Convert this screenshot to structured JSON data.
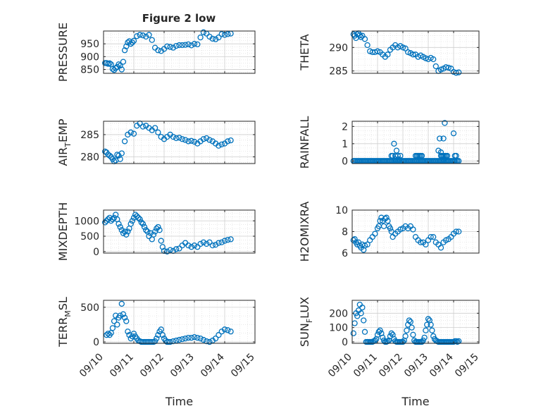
{
  "figure": {
    "title": "Figure 2 low",
    "xlabel": "Time",
    "marker_color": "#0072bd"
  },
  "chart_data": [
    {
      "type": "scatter",
      "ylabel_main": "PRESSURE",
      "ylabel_sub": "",
      "ylabel_tail": "",
      "ylim": [
        835,
        1000
      ],
      "yticks": [
        850,
        900,
        950
      ],
      "xlim": [
        0,
        5
      ],
      "grid": true,
      "x": [
        0.05,
        0.1,
        0.15,
        0.2,
        0.25,
        0.3,
        0.35,
        0.4,
        0.45,
        0.5,
        0.55,
        0.6,
        0.65,
        0.7,
        0.75,
        0.8,
        0.85,
        0.9,
        0.95,
        1.0,
        1.1,
        1.2,
        1.3,
        1.4,
        1.5,
        1.6,
        1.7,
        1.8,
        1.9,
        2.0,
        2.1,
        2.2,
        2.3,
        2.4,
        2.5,
        2.6,
        2.7,
        2.8,
        2.9,
        3.0,
        3.1,
        3.2,
        3.3,
        3.4,
        3.5,
        3.6,
        3.7,
        3.8,
        3.9,
        4.0,
        4.1,
        4.2
      ],
      "y": [
        875,
        875,
        872,
        874,
        870,
        852,
        848,
        855,
        860,
        870,
        865,
        850,
        880,
        925,
        940,
        955,
        960,
        950,
        955,
        962,
        980,
        985,
        983,
        978,
        985,
        965,
        935,
        925,
        922,
        930,
        940,
        938,
        935,
        942,
        945,
        945,
        946,
        948,
        944,
        950,
        948,
        975,
        995,
        990,
        978,
        970,
        968,
        975,
        988,
        985,
        988,
        990
      ]
    },
    {
      "type": "scatter",
      "ylabel_main": "THETA",
      "ylabel_sub": "",
      "ylabel_tail": "",
      "ylim": [
        284.5,
        293.5
      ],
      "yticks": [
        285,
        290
      ],
      "xlim": [
        0,
        5
      ],
      "grid": true,
      "x": [
        0.05,
        0.1,
        0.15,
        0.2,
        0.25,
        0.3,
        0.35,
        0.4,
        0.5,
        0.6,
        0.7,
        0.8,
        0.9,
        1.0,
        1.1,
        1.2,
        1.3,
        1.4,
        1.5,
        1.6,
        1.7,
        1.8,
        1.9,
        2.0,
        2.1,
        2.2,
        2.3,
        2.4,
        2.5,
        2.6,
        2.7,
        2.8,
        2.9,
        3.0,
        3.1,
        3.2,
        3.3,
        3.4,
        3.5,
        3.6,
        3.7,
        3.8,
        3.9,
        4.0,
        4.1,
        4.2
      ],
      "y": [
        292.8,
        292.5,
        292.0,
        292.8,
        293.0,
        292.6,
        292.2,
        292.5,
        291.8,
        290.5,
        289.2,
        289.0,
        289.0,
        289.2,
        289.0,
        288.5,
        288.0,
        288.5,
        289.5,
        290.0,
        290.5,
        290.0,
        290.3,
        290.0,
        289.8,
        289.0,
        288.8,
        288.5,
        288.5,
        288.0,
        288.3,
        288.0,
        287.7,
        287.5,
        287.8,
        287.5,
        286.0,
        285.0,
        285.3,
        285.5,
        285.8,
        285.7,
        285.5,
        284.8,
        284.6,
        284.7
      ]
    },
    {
      "type": "scatter",
      "ylabel_main": "AIR",
      "ylabel_sub": "T",
      "ylabel_tail": "EMP",
      "ylim": [
        278.5,
        288
      ],
      "yticks": [
        280,
        285
      ],
      "xlim": [
        0,
        5
      ],
      "grid": true,
      "x": [
        0.05,
        0.1,
        0.15,
        0.2,
        0.25,
        0.3,
        0.35,
        0.4,
        0.45,
        0.5,
        0.55,
        0.6,
        0.7,
        0.8,
        0.9,
        1.0,
        1.1,
        1.2,
        1.3,
        1.4,
        1.5,
        1.6,
        1.7,
        1.8,
        1.9,
        2.0,
        2.1,
        2.2,
        2.3,
        2.4,
        2.5,
        2.6,
        2.7,
        2.8,
        2.9,
        3.0,
        3.1,
        3.2,
        3.3,
        3.4,
        3.5,
        3.6,
        3.7,
        3.8,
        3.9,
        4.0,
        4.1,
        4.2
      ],
      "y": [
        281.2,
        281.0,
        280.5,
        280.3,
        280.0,
        279.5,
        279.0,
        279.2,
        280.5,
        280.3,
        279.5,
        280.8,
        283.5,
        285.0,
        285.5,
        285.2,
        287.0,
        287.5,
        286.8,
        287.0,
        286.5,
        286.0,
        286.5,
        285.5,
        284.5,
        284.0,
        284.5,
        285.0,
        284.5,
        284.2,
        284.3,
        284.0,
        283.8,
        283.5,
        283.6,
        283.4,
        283.0,
        283.5,
        284.0,
        284.2,
        283.8,
        283.5,
        283.0,
        282.5,
        282.8,
        283.0,
        283.5,
        283.7
      ]
    },
    {
      "type": "scatter",
      "ylabel_main": "RAINFALL",
      "ylabel_sub": "",
      "ylabel_tail": "",
      "ylim": [
        -0.15,
        2.3
      ],
      "yticks": [
        0,
        1,
        2
      ],
      "xlim": [
        0,
        5
      ],
      "grid": true,
      "x": [
        0.05,
        0.1,
        0.15,
        0.2,
        0.25,
        0.3,
        0.35,
        0.4,
        0.45,
        0.5,
        0.55,
        0.6,
        0.65,
        0.7,
        0.75,
        0.8,
        0.85,
        0.9,
        0.95,
        1.0,
        1.05,
        1.1,
        1.15,
        1.2,
        1.25,
        1.3,
        1.35,
        1.4,
        1.45,
        1.5,
        1.55,
        1.6,
        1.65,
        1.7,
        1.75,
        1.8,
        1.85,
        1.9,
        1.95,
        2.0,
        2.05,
        2.1,
        2.15,
        2.2,
        2.25,
        2.3,
        2.35,
        2.4,
        2.45,
        2.5,
        2.55,
        2.6,
        2.65,
        2.7,
        2.75,
        2.8,
        2.85,
        2.9,
        2.95,
        3.0,
        3.05,
        3.1,
        3.15,
        3.2,
        3.25,
        3.3,
        3.35,
        3.4,
        3.45,
        3.5,
        3.55,
        3.6,
        3.65,
        3.7,
        3.75,
        3.8,
        3.85,
        3.9,
        3.95,
        4.0,
        4.05,
        4.1,
        4.15,
        4.2,
        1.55,
        1.6,
        1.65,
        1.7,
        1.75,
        1.8,
        1.85,
        1.9,
        2.5,
        2.55,
        2.6,
        2.65,
        2.7,
        2.75,
        3.5,
        3.55,
        3.6,
        3.65,
        3.7,
        3.75,
        3.6,
        3.65,
        4.0,
        4.05,
        4.1,
        1.7,
        3.4,
        3.45,
        3.5,
        3.55,
        3.6
      ],
      "y": [
        0,
        0,
        0,
        0,
        0,
        0,
        0,
        0,
        0,
        0,
        0,
        0,
        0,
        0,
        0,
        0,
        0,
        0,
        0,
        0,
        0,
        0,
        0,
        0,
        0,
        0,
        0,
        0,
        0,
        0,
        0,
        0,
        0,
        0,
        0,
        0,
        0,
        0,
        0,
        0,
        0,
        0,
        0,
        0,
        0,
        0,
        0,
        0,
        0,
        0,
        0,
        0,
        0,
        0,
        0,
        0,
        0,
        0,
        0,
        0,
        0,
        0,
        0,
        0,
        0,
        0,
        0,
        0,
        0,
        0,
        0,
        0,
        0,
        0,
        0,
        0,
        0,
        0,
        0,
        0,
        0,
        0,
        0,
        0,
        0.3,
        0.3,
        1.0,
        0.3,
        0.6,
        0.3,
        0.1,
        0.3,
        0.3,
        0.3,
        0.3,
        0.3,
        0.3,
        0.3,
        0.3,
        0.3,
        0.3,
        0.3,
        0.3,
        0.3,
        1.3,
        2.2,
        1.6,
        0.3,
        0.3,
        0.1,
        0.6,
        1.3,
        0.5,
        0.3,
        0.1
      ]
    },
    {
      "type": "scatter",
      "ylabel_main": "MIXDEPTH",
      "ylabel_sub": "",
      "ylabel_tail": "",
      "ylim": [
        -50,
        1350
      ],
      "yticks": [
        0,
        500,
        1000
      ],
      "xlim": [
        0,
        5
      ],
      "grid": true,
      "x": [
        0.05,
        0.1,
        0.15,
        0.2,
        0.25,
        0.3,
        0.35,
        0.4,
        0.45,
        0.5,
        0.55,
        0.6,
        0.65,
        0.7,
        0.75,
        0.8,
        0.85,
        0.9,
        0.95,
        1.0,
        1.05,
        1.1,
        1.15,
        1.2,
        1.25,
        1.3,
        1.35,
        1.4,
        1.45,
        1.5,
        1.55,
        1.6,
        1.65,
        1.7,
        1.75,
        1.8,
        1.85,
        1.9,
        1.95,
        2.0,
        2.1,
        2.2,
        2.3,
        2.4,
        2.5,
        2.6,
        2.7,
        2.8,
        2.9,
        3.0,
        3.1,
        3.2,
        3.3,
        3.4,
        3.5,
        3.6,
        3.7,
        3.8,
        3.9,
        4.0,
        4.1,
        4.2
      ],
      "y": [
        950,
        1000,
        1050,
        1100,
        1000,
        1050,
        1100,
        1200,
        1050,
        900,
        800,
        700,
        600,
        650,
        550,
        650,
        750,
        900,
        1000,
        1100,
        1200,
        1150,
        1100,
        1050,
        950,
        900,
        800,
        700,
        650,
        500,
        600,
        400,
        550,
        650,
        750,
        800,
        700,
        350,
        150,
        20,
        0,
        50,
        20,
        80,
        100,
        200,
        280,
        200,
        150,
        200,
        150,
        250,
        300,
        250,
        300,
        200,
        220,
        280,
        300,
        350,
        380,
        400
      ]
    },
    {
      "type": "scatter",
      "ylabel_main": "H2OMIXRA",
      "ylabel_sub": "",
      "ylabel_tail": "",
      "ylim": [
        6,
        10
      ],
      "yticks": [
        6,
        8,
        10
      ],
      "xlim": [
        0,
        5
      ],
      "grid": true,
      "x": [
        0.05,
        0.1,
        0.15,
        0.2,
        0.25,
        0.3,
        0.35,
        0.4,
        0.45,
        0.5,
        0.6,
        0.7,
        0.8,
        0.9,
        1.0,
        1.05,
        1.1,
        1.15,
        1.2,
        1.25,
        1.3,
        1.35,
        1.4,
        1.45,
        1.5,
        1.55,
        1.6,
        1.7,
        1.8,
        1.9,
        2.0,
        2.1,
        2.2,
        2.3,
        2.4,
        2.5,
        2.6,
        2.7,
        2.8,
        2.9,
        3.0,
        3.1,
        3.2,
        3.3,
        3.4,
        3.5,
        3.6,
        3.7,
        3.8,
        3.9,
        4.0,
        4.1,
        4.2
      ],
      "y": [
        7.2,
        7.3,
        7.0,
        6.8,
        7.0,
        6.7,
        6.5,
        6.8,
        6.3,
        6.7,
        6.8,
        7.2,
        7.5,
        7.8,
        8.3,
        8.5,
        9.0,
        9.3,
        9.0,
        8.5,
        9.2,
        9.3,
        9.0,
        8.5,
        8.3,
        8.0,
        7.5,
        7.8,
        8.0,
        8.2,
        8.3,
        8.5,
        8.3,
        8.5,
        8.2,
        7.5,
        7.2,
        7.0,
        7.0,
        6.8,
        7.2,
        7.5,
        7.5,
        7.0,
        6.8,
        6.5,
        7.0,
        7.2,
        7.3,
        7.5,
        7.8,
        8.0,
        8.0
      ]
    },
    {
      "type": "scatter",
      "ylabel_main": "TERR",
      "ylabel_sub": "M",
      "ylabel_tail": "SL",
      "ylim": [
        -20,
        600
      ],
      "yticks": [
        0,
        500
      ],
      "xlim": [
        0,
        5
      ],
      "grid": true,
      "x": [
        0.1,
        0.15,
        0.2,
        0.25,
        0.3,
        0.35,
        0.4,
        0.45,
        0.5,
        0.55,
        0.6,
        0.65,
        0.7,
        0.75,
        0.8,
        0.85,
        0.9,
        0.95,
        1.0,
        1.05,
        1.1,
        1.15,
        1.2,
        1.25,
        1.3,
        1.35,
        1.4,
        1.45,
        1.5,
        1.55,
        1.6,
        1.65,
        1.7,
        1.75,
        1.8,
        1.85,
        1.9,
        1.95,
        2.0,
        2.05,
        2.1,
        2.15,
        2.2,
        2.3,
        2.4,
        2.5,
        2.6,
        2.7,
        2.8,
        2.9,
        3.0,
        3.1,
        3.2,
        3.3,
        3.4,
        3.5,
        3.6,
        3.7,
        3.8,
        3.9,
        4.0,
        4.1,
        4.2
      ],
      "y": [
        100,
        120,
        100,
        130,
        200,
        300,
        380,
        250,
        350,
        380,
        550,
        400,
        350,
        300,
        150,
        100,
        50,
        80,
        120,
        80,
        50,
        20,
        10,
        0,
        0,
        0,
        0,
        0,
        0,
        0,
        0,
        0,
        10,
        50,
        100,
        150,
        180,
        100,
        50,
        20,
        0,
        0,
        0,
        10,
        20,
        30,
        40,
        50,
        60,
        60,
        70,
        60,
        50,
        30,
        10,
        0,
        20,
        50,
        100,
        150,
        180,
        170,
        150
      ]
    },
    {
      "type": "scatter",
      "ylabel_main": "SUN",
      "ylabel_sub": "F",
      "ylabel_tail": "LUX",
      "ylim": [
        -10,
        290
      ],
      "yticks": [
        0,
        100,
        200
      ],
      "xlim": [
        0,
        5
      ],
      "grid": true,
      "x": [
        0.05,
        0.1,
        0.15,
        0.2,
        0.25,
        0.3,
        0.35,
        0.4,
        0.45,
        0.5,
        0.55,
        0.6,
        0.65,
        0.7,
        0.75,
        0.8,
        0.85,
        0.9,
        0.95,
        1.0,
        1.05,
        1.1,
        1.15,
        1.2,
        1.25,
        1.3,
        1.35,
        1.4,
        1.45,
        1.5,
        1.55,
        1.6,
        1.65,
        1.7,
        1.75,
        1.8,
        1.85,
        1.9,
        1.95,
        2.0,
        2.05,
        2.1,
        2.15,
        2.2,
        2.25,
        2.3,
        2.35,
        2.4,
        2.45,
        2.5,
        2.55,
        2.6,
        2.65,
        2.7,
        2.75,
        2.8,
        2.85,
        2.9,
        2.95,
        3.0,
        3.05,
        3.1,
        3.15,
        3.2,
        3.25,
        3.3,
        3.35,
        3.4,
        3.45,
        3.5,
        3.55,
        3.6,
        3.65,
        3.7,
        3.75,
        3.8,
        3.85,
        3.9,
        3.95,
        4.0,
        4.05,
        4.1,
        4.15,
        4.2
      ],
      "y": [
        60,
        130,
        200,
        180,
        220,
        260,
        200,
        240,
        150,
        70,
        0,
        0,
        0,
        0,
        0,
        0,
        5,
        10,
        20,
        50,
        70,
        80,
        60,
        30,
        10,
        0,
        0,
        5,
        10,
        40,
        60,
        50,
        20,
        5,
        0,
        0,
        0,
        0,
        0,
        0,
        10,
        40,
        80,
        120,
        150,
        140,
        100,
        50,
        10,
        0,
        0,
        0,
        0,
        0,
        0,
        10,
        30,
        80,
        120,
        160,
        150,
        120,
        80,
        40,
        20,
        10,
        5,
        0,
        0,
        0,
        0,
        0,
        0,
        0,
        0,
        0,
        0,
        0,
        0,
        0,
        5,
        5,
        0,
        5
      ]
    }
  ],
  "xaxis": {
    "ticks": [
      0,
      1,
      2,
      3,
      4,
      5
    ],
    "ticklabels": [
      "09/10",
      "09/11",
      "09/12",
      "09/13",
      "09/14",
      "09/15"
    ]
  }
}
